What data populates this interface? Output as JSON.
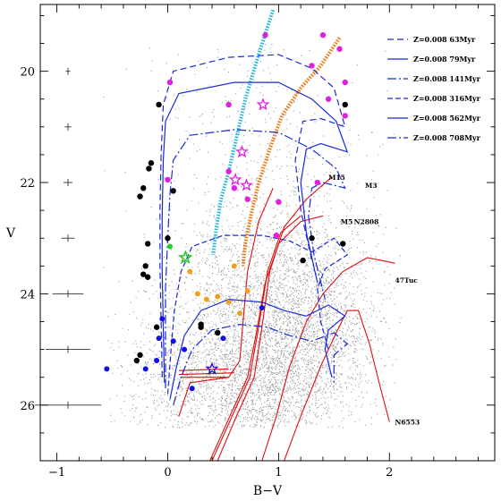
{
  "chart_data": {
    "type": "scatter",
    "xlabel": "B−V",
    "ylabel": "V",
    "xlim": [
      -1.15,
      2.95
    ],
    "ylim": [
      27.0,
      18.8
    ],
    "y_inverted": true,
    "x_ticks": [
      -1,
      0,
      1,
      2
    ],
    "x_tick_labels": [
      "−1",
      "0",
      "1",
      "2"
    ],
    "y_ticks": [
      20,
      22,
      24,
      26
    ],
    "y_tick_labels": [
      "20",
      "22",
      "24",
      "26"
    ],
    "grid": false,
    "legend_position": "top-right",
    "isochrones": [
      {
        "name": "Z=0.008 63Myr",
        "color": "#1a2bd6",
        "dash": "7 4",
        "points": [
          [
            -0.05,
            25.5
          ],
          [
            -0.06,
            24.5
          ],
          [
            -0.07,
            23.5
          ],
          [
            -0.07,
            22.5
          ],
          [
            -0.06,
            21.5
          ],
          [
            -0.04,
            20.6
          ],
          [
            0.05,
            20.0
          ],
          [
            0.55,
            19.75
          ],
          [
            1.0,
            19.7
          ],
          [
            1.3,
            19.95
          ],
          [
            1.5,
            20.3
          ],
          [
            1.6,
            21.0
          ],
          [
            1.38,
            20.85
          ],
          [
            1.22,
            20.9
          ],
          [
            1.15,
            21.6
          ],
          [
            1.2,
            22.5
          ],
          [
            1.3,
            23.4
          ]
        ]
      },
      {
        "name": "Z=0.008 79Myr",
        "color": "#1a2bd6",
        "dash": "none",
        "points": [
          [
            -0.03,
            25.6
          ],
          [
            -0.04,
            24.6
          ],
          [
            -0.05,
            23.6
          ],
          [
            -0.05,
            22.6
          ],
          [
            -0.04,
            21.6
          ],
          [
            -0.02,
            20.9
          ],
          [
            0.1,
            20.4
          ],
          [
            0.6,
            20.2
          ],
          [
            1.0,
            20.2
          ],
          [
            1.3,
            20.5
          ],
          [
            1.52,
            20.9
          ],
          [
            1.62,
            21.45
          ],
          [
            1.38,
            21.3
          ],
          [
            1.25,
            21.4
          ],
          [
            1.2,
            22.0
          ],
          [
            1.25,
            22.9
          ],
          [
            1.35,
            23.8
          ]
        ]
      },
      {
        "name": "Z=0.008 141Myr",
        "color": "#1a2bd6",
        "dash": "10 3 2 3",
        "points": [
          [
            -0.02,
            25.7
          ],
          [
            -0.02,
            24.8
          ],
          [
            -0.02,
            23.9
          ],
          [
            0.0,
            23.0
          ],
          [
            0.02,
            22.2
          ],
          [
            0.05,
            21.6
          ],
          [
            0.2,
            21.15
          ],
          [
            0.6,
            21.05
          ],
          [
            1.0,
            21.1
          ],
          [
            1.3,
            21.4
          ],
          [
            1.52,
            21.75
          ],
          [
            1.6,
            22.1
          ],
          [
            1.4,
            22.0
          ],
          [
            1.3,
            22.1
          ],
          [
            1.27,
            22.6
          ],
          [
            1.32,
            23.3
          ],
          [
            1.42,
            24.1
          ]
        ]
      },
      {
        "name": "Z=0.008 316Myr",
        "color": "#1a2bd6",
        "dash": "6 3",
        "points": [
          [
            0.0,
            25.8
          ],
          [
            0.03,
            25.0
          ],
          [
            0.06,
            24.3
          ],
          [
            0.12,
            23.6
          ],
          [
            0.22,
            23.15
          ],
          [
            0.5,
            22.95
          ],
          [
            0.85,
            22.95
          ],
          [
            1.1,
            23.05
          ],
          [
            1.3,
            23.25
          ],
          [
            1.5,
            23.0
          ],
          [
            1.62,
            23.3
          ],
          [
            1.42,
            23.55
          ],
          [
            1.35,
            23.9
          ],
          [
            1.38,
            24.5
          ],
          [
            1.45,
            25.0
          ]
        ]
      },
      {
        "name": "Z=0.008 562Myr",
        "color": "#1a2bd6",
        "dash": "none",
        "points": [
          [
            0.02,
            25.9
          ],
          [
            0.08,
            25.3
          ],
          [
            0.15,
            24.75
          ],
          [
            0.3,
            24.3
          ],
          [
            0.55,
            24.1
          ],
          [
            0.85,
            24.15
          ],
          [
            1.05,
            24.3
          ],
          [
            1.25,
            24.4
          ],
          [
            1.45,
            24.2
          ],
          [
            1.6,
            24.4
          ],
          [
            1.45,
            24.65
          ],
          [
            1.42,
            25.0
          ],
          [
            1.48,
            25.5
          ]
        ]
      },
      {
        "name": "Z=0.008 708Myr",
        "color": "#1a2bd6",
        "dash": "10 3 2 3",
        "points": [
          [
            0.05,
            26.0
          ],
          [
            0.12,
            25.5
          ],
          [
            0.22,
            25.0
          ],
          [
            0.4,
            24.65
          ],
          [
            0.65,
            24.55
          ],
          [
            0.9,
            24.6
          ],
          [
            1.1,
            24.75
          ],
          [
            1.3,
            24.85
          ],
          [
            1.5,
            24.7
          ],
          [
            1.62,
            24.9
          ],
          [
            1.5,
            25.1
          ],
          [
            1.5,
            25.6
          ]
        ]
      }
    ],
    "gc_ridges": [
      {
        "name": "M15",
        "points": [
          [
            0.1,
            26.2
          ],
          [
            0.2,
            25.6
          ],
          [
            0.55,
            25.5
          ],
          [
            0.65,
            25.2
          ],
          [
            0.68,
            24.5
          ],
          [
            0.72,
            23.6
          ],
          [
            0.82,
            22.7
          ],
          [
            0.95,
            22.1
          ]
        ]
      },
      {
        "name": "M3",
        "points": [
          [
            0.45,
            27.0
          ],
          [
            0.62,
            26.2
          ],
          [
            0.78,
            25.5
          ],
          [
            0.85,
            24.6
          ],
          [
            0.92,
            23.6
          ],
          [
            1.05,
            22.8
          ],
          [
            1.25,
            22.3
          ],
          [
            1.48,
            21.9
          ]
        ]
      },
      {
        "name": "M5",
        "points": [
          [
            0.4,
            27.0
          ],
          [
            0.58,
            26.2
          ],
          [
            0.74,
            25.5
          ],
          [
            0.82,
            24.6
          ],
          [
            0.9,
            23.6
          ],
          [
            1.02,
            22.9
          ],
          [
            1.2,
            22.6
          ]
        ]
      },
      {
        "name": "N2808",
        "points": [
          [
            0.38,
            27.0
          ],
          [
            0.56,
            26.2
          ],
          [
            0.72,
            25.5
          ],
          [
            0.8,
            24.7
          ],
          [
            0.88,
            23.8
          ],
          [
            1.0,
            23.1
          ],
          [
            1.2,
            22.7
          ],
          [
            1.4,
            22.6
          ]
        ]
      },
      {
        "name": "47Tuc",
        "points": [
          [
            0.85,
            27.0
          ],
          [
            0.98,
            26.2
          ],
          [
            1.1,
            25.3
          ],
          [
            1.25,
            24.5
          ],
          [
            1.4,
            24.0
          ],
          [
            1.58,
            23.6
          ],
          [
            1.8,
            23.35
          ],
          [
            2.05,
            23.45
          ]
        ]
      },
      {
        "name": "N6553",
        "points": [
          [
            1.05,
            27.0
          ],
          [
            1.2,
            26.2
          ],
          [
            1.38,
            25.3
          ],
          [
            1.52,
            24.7
          ],
          [
            1.62,
            24.3
          ],
          [
            1.72,
            24.3
          ],
          [
            1.82,
            24.9
          ],
          [
            1.92,
            25.7
          ],
          [
            2.0,
            26.3
          ]
        ]
      }
    ],
    "horizontal_branches": [
      {
        "points": [
          [
            0.1,
            25.38
          ],
          [
            0.55,
            25.35
          ]
        ]
      },
      {
        "points": [
          [
            0.1,
            25.45
          ],
          [
            0.6,
            25.42
          ]
        ]
      },
      {
        "points": [
          [
            0.12,
            25.5
          ],
          [
            0.55,
            25.5
          ]
        ]
      }
    ],
    "tracks": [
      {
        "name": "cyan",
        "color": "#29b8e0",
        "points": [
          [
            0.95,
            18.9
          ],
          [
            0.82,
            19.7
          ],
          [
            0.7,
            20.5
          ],
          [
            0.62,
            21.2
          ],
          [
            0.55,
            21.8
          ],
          [
            0.48,
            22.3
          ],
          [
            0.44,
            22.8
          ],
          [
            0.41,
            23.3
          ]
        ]
      },
      {
        "name": "orange",
        "color": "#f07a10",
        "points": [
          [
            1.55,
            19.4
          ],
          [
            1.38,
            19.9
          ],
          [
            1.2,
            20.3
          ],
          [
            1.03,
            20.8
          ],
          [
            0.92,
            21.4
          ],
          [
            0.82,
            22.0
          ],
          [
            0.75,
            22.6
          ],
          [
            0.7,
            23.1
          ],
          [
            0.68,
            23.5
          ]
        ]
      }
    ],
    "magenta_points": [
      [
        0.88,
        19.35
      ],
      [
        1.4,
        19.35
      ],
      [
        1.55,
        19.6
      ],
      [
        0.02,
        20.2
      ],
      [
        1.3,
        19.9
      ],
      [
        1.6,
        20.2
      ],
      [
        1.45,
        20.5
      ],
      [
        0.55,
        20.6
      ],
      [
        1.6,
        20.8
      ],
      [
        0.0,
        21.95
      ],
      [
        1.35,
        22.0
      ],
      [
        0.55,
        21.8
      ],
      [
        1.0,
        22.35
      ],
      [
        0.72,
        22.3
      ],
      [
        0.6,
        22.1
      ],
      [
        0.98,
        22.95
      ]
    ],
    "magenta_stars": [
      [
        0.86,
        20.6
      ],
      [
        0.67,
        21.45
      ],
      [
        0.61,
        21.95
      ],
      [
        0.71,
        22.05
      ]
    ],
    "black_points": [
      [
        -0.08,
        20.6
      ],
      [
        -0.15,
        21.65
      ],
      [
        -0.17,
        21.75
      ],
      [
        -0.22,
        22.1
      ],
      [
        -0.25,
        22.25
      ],
      [
        0.05,
        22.15
      ],
      [
        -0.18,
        23.1
      ],
      [
        -0.2,
        23.5
      ],
      [
        -0.22,
        23.65
      ],
      [
        -0.18,
        23.7
      ],
      [
        0.0,
        23.0
      ],
      [
        -0.1,
        24.6
      ],
      [
        -0.25,
        25.1
      ],
      [
        -0.28,
        25.2
      ],
      [
        0.3,
        24.55
      ],
      [
        0.45,
        24.7
      ],
      [
        1.22,
        23.4
      ],
      [
        1.3,
        23.0
      ],
      [
        1.58,
        23.1
      ],
      [
        1.6,
        20.6
      ],
      [
        0.3,
        24.6
      ]
    ],
    "blue_points": [
      [
        -0.55,
        25.35
      ],
      [
        -0.2,
        25.35
      ],
      [
        -0.05,
        24.45
      ],
      [
        -0.08,
        24.8
      ],
      [
        -0.1,
        25.2
      ],
      [
        0.05,
        24.85
      ],
      [
        0.15,
        25.0
      ],
      [
        0.5,
        24.8
      ],
      [
        0.85,
        24.25
      ],
      [
        0.22,
        25.7
      ]
    ],
    "blue_star": [
      0.4,
      25.35
    ],
    "orange_points": [
      [
        0.27,
        24.0
      ],
      [
        0.35,
        24.1
      ],
      [
        0.45,
        24.05
      ],
      [
        0.55,
        24.15
      ],
      [
        0.65,
        24.35
      ],
      [
        0.72,
        23.95
      ],
      [
        0.6,
        23.5
      ],
      [
        0.2,
        23.6
      ]
    ],
    "green_point": [
      0.02,
      23.15
    ],
    "green_star": [
      0.16,
      23.35
    ],
    "error_bars": [
      {
        "v": 20.0,
        "xerr": 0.02
      },
      {
        "v": 21.0,
        "xerr": 0.03
      },
      {
        "v": 22.0,
        "xerr": 0.04
      },
      {
        "v": 23.0,
        "xerr": 0.06
      },
      {
        "v": 24.0,
        "xerr": 0.14
      },
      {
        "v": 25.0,
        "xerr": 0.2
      },
      {
        "v": 26.0,
        "xerr": 0.3
      }
    ],
    "legend": {
      "entries": [
        "Z=0.008 63Myr",
        "Z=0.008 79Myr",
        "Z=0.008 141Myr",
        "Z=0.008 316Myr",
        "Z=0.008 562Myr",
        "Z=0.008 708Myr"
      ]
    },
    "annotations": [
      "M15",
      "M3",
      "M5",
      "N2808",
      "47Tuc",
      "N6553"
    ],
    "colors": {
      "field_stars": "#a0a0a0",
      "isochrone": "#1a2bd6",
      "gc_ridge": "#e01010",
      "magenta": "#e020e0",
      "black": "#000000",
      "blue": "#1010e0",
      "orange": "#f0a020",
      "green": "#22cc22",
      "cyan": "#29b8e0",
      "orange_track": "#f07a10"
    }
  }
}
